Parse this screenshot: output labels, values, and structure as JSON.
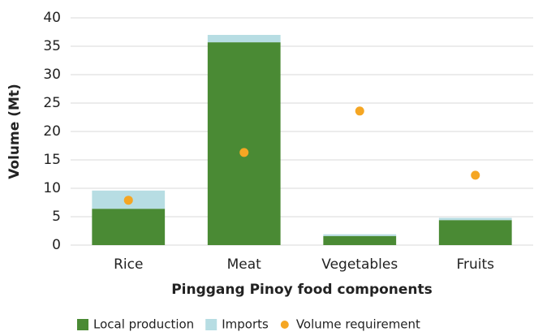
{
  "chart_data": {
    "type": "bar",
    "stacked": true,
    "x_label": "Pinggang Pinoy food components",
    "y_label": "Volume (Mt)",
    "categories": [
      "Rice",
      "Meat",
      "Vegetables",
      "Fruits"
    ],
    "series": [
      {
        "name": "Local production",
        "color": "#4a8a34",
        "values": [
          6.4,
          35.7,
          1.6,
          4.4
        ]
      },
      {
        "name": "Imports",
        "color": "#b7dde3",
        "values": [
          3.2,
          1.3,
          0.3,
          0.4
        ]
      },
      {
        "name": "Volume requirement",
        "color": "#f5a623",
        "type": "scatter",
        "values": [
          7.9,
          16.3,
          23.6,
          12.3
        ]
      }
    ],
    "ylim": [
      0,
      40
    ],
    "yticks": [
      0,
      5,
      10,
      15,
      20,
      25,
      30,
      35,
      40
    ],
    "grid": true,
    "legend": "bottom"
  }
}
